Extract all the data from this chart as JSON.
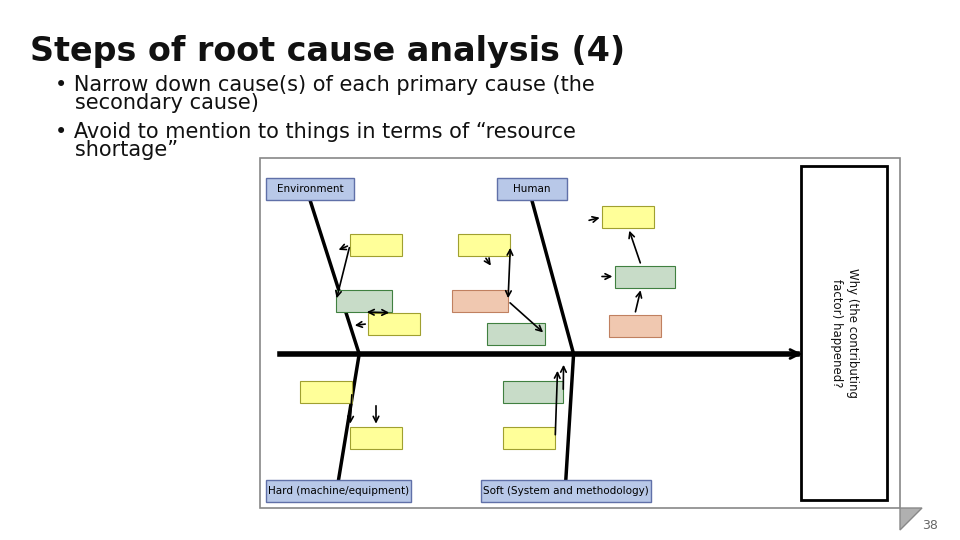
{
  "title": "Steps of root cause analysis (4)",
  "bullet1_line1": "• Narrow down cause(s) of each primary cause (the",
  "bullet1_line2": "   secondary cause)",
  "bullet2_line1": "• Avoid to mention to things in terms of “resource",
  "bullet2_line2": "   shortage”",
  "page_number": "38",
  "bg_color": "#ffffff",
  "title_fontsize": 24,
  "bullet_fontsize": 15,
  "label_env": "Environment",
  "label_human": "Human",
  "label_hard": "Hard (machine/equipment)",
  "label_soft": "Soft (System and methodology)",
  "label_right": "Why (the contributing\nfactor) happened?",
  "yellow": "#ffff99",
  "light_green": "#c8dcc8",
  "light_salmon": "#f0c8b0",
  "label_blue": "#b8c8e8",
  "green_outline": "#408040",
  "salmon_outline": "#c08060"
}
